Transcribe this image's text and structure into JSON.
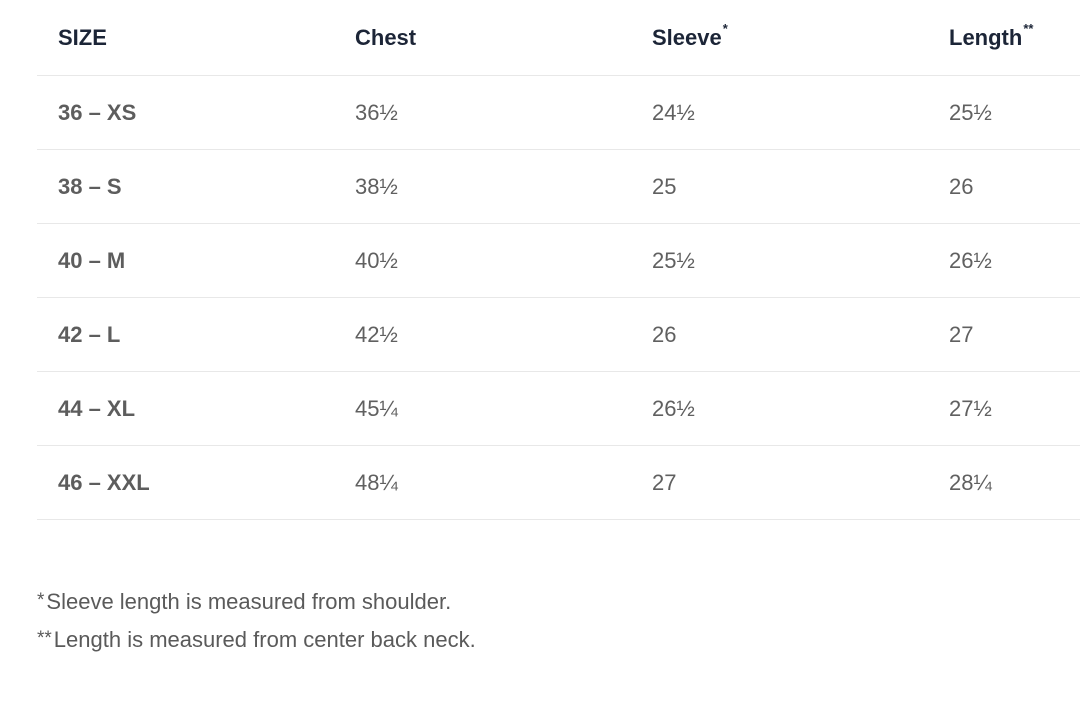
{
  "table": {
    "headers": {
      "size": "SIZE",
      "chest": "Chest",
      "sleeve": "Sleeve",
      "sleeve_mark": "*",
      "length": "Length",
      "length_mark": "**"
    },
    "rows": [
      {
        "size": "36 – XS",
        "chest": "36½",
        "sleeve": "24½",
        "length": "25½"
      },
      {
        "size": "38 – S",
        "chest": "38½",
        "sleeve": "25",
        "length": "26"
      },
      {
        "size": "40 – M",
        "chest": "40½",
        "sleeve": "25½",
        "length": "26½"
      },
      {
        "size": "42 – L",
        "chest": "42½",
        "sleeve": "26",
        "length": "27"
      },
      {
        "size": "44 – XL",
        "chest": "45¼",
        "sleeve": "26½",
        "length": "27½"
      },
      {
        "size": "46 – XXL",
        "chest": "48¼",
        "sleeve": "27",
        "length": "28¼"
      }
    ]
  },
  "footnotes": [
    {
      "marker": "*",
      "text": "Sleeve length is measured from shoulder."
    },
    {
      "marker": "**",
      "text": "Length is measured from center back neck."
    }
  ]
}
